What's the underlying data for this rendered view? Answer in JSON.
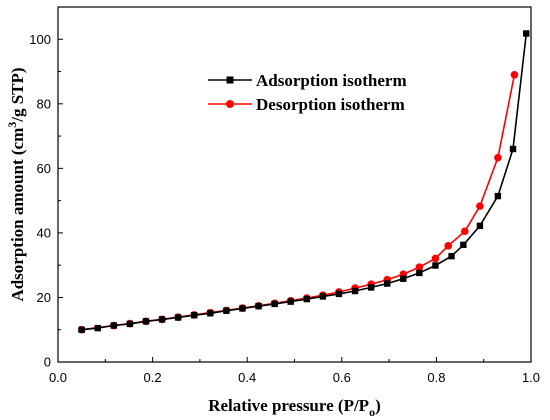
{
  "chart_data": {
    "type": "line",
    "xlabel": "Relative pressure (P/P",
    "xlabel_sub": "o",
    "xlabel_end": ")",
    "ylabel": "Adsorption amount (cm",
    "ylabel_sup": "3",
    "ylabel_end": "/g STP)",
    "xlim": [
      0.0,
      1.0
    ],
    "ylim": [
      0,
      110
    ],
    "xticks": [
      0.0,
      0.2,
      0.4,
      0.6,
      0.8,
      1.0
    ],
    "xtick_labels": [
      "0.0",
      "0.2",
      "0.4",
      "0.6",
      "0.8",
      "1.0"
    ],
    "yticks": [
      0,
      20,
      40,
      60,
      80,
      100
    ],
    "ytick_labels": [
      "0",
      "20",
      "40",
      "60",
      "80",
      "100"
    ],
    "grid": false,
    "legend_position": "upper-center",
    "series": [
      {
        "name": "Adsorption isotherm",
        "color": "#000000",
        "marker": "square",
        "x": [
          0.05,
          0.084,
          0.118,
          0.152,
          0.186,
          0.22,
          0.254,
          0.288,
          0.322,
          0.356,
          0.39,
          0.424,
          0.458,
          0.492,
          0.526,
          0.56,
          0.594,
          0.628,
          0.662,
          0.696,
          0.73,
          0.764,
          0.798,
          0.832,
          0.857,
          0.892,
          0.93,
          0.962,
          0.99
        ],
        "y": [
          10.0,
          10.5,
          11.3,
          11.8,
          12.6,
          13.2,
          13.8,
          14.5,
          15.1,
          15.9,
          16.6,
          17.3,
          18.0,
          18.7,
          19.5,
          20.3,
          21.1,
          22.0,
          23.1,
          24.3,
          25.8,
          27.6,
          29.9,
          32.8,
          36.3,
          42.2,
          51.4,
          66.0,
          101.8
        ]
      },
      {
        "name": "Desorption isotherm",
        "color": "#ff0000",
        "marker": "circle",
        "x": [
          0.05,
          0.118,
          0.152,
          0.186,
          0.22,
          0.254,
          0.288,
          0.322,
          0.356,
          0.39,
          0.424,
          0.458,
          0.492,
          0.526,
          0.56,
          0.594,
          0.628,
          0.662,
          0.696,
          0.73,
          0.764,
          0.798,
          0.825,
          0.86,
          0.892,
          0.93,
          0.965
        ],
        "y": [
          10.0,
          11.3,
          11.9,
          12.6,
          13.2,
          13.9,
          14.6,
          15.3,
          16.0,
          16.7,
          17.4,
          18.2,
          19.0,
          19.8,
          20.7,
          21.7,
          22.9,
          24.1,
          25.5,
          27.2,
          29.4,
          32.1,
          36.0,
          40.5,
          48.3,
          63.3,
          89.0
        ]
      }
    ]
  }
}
